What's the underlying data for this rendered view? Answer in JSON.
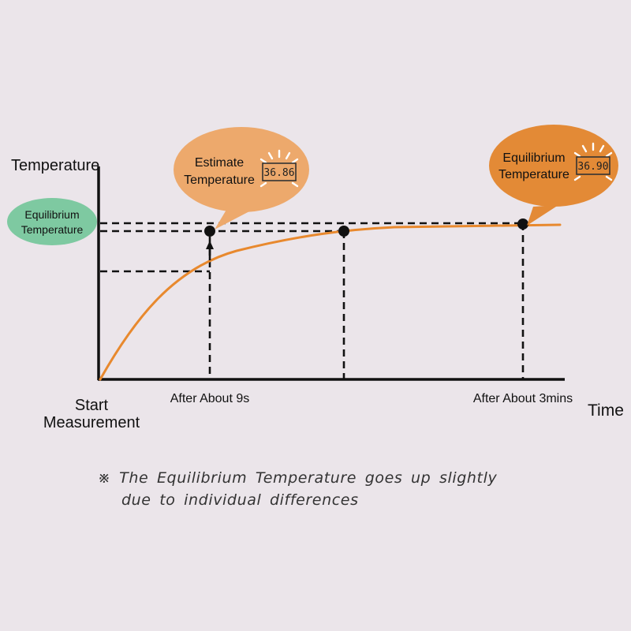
{
  "diagram": {
    "y_axis_label": "Temperature",
    "x_axis_label": "Time",
    "origin_label": [
      "Start",
      "Measurement"
    ],
    "marker_labels": {
      "nine_seconds": "After About 9s",
      "three_minutes": "After About 3mins"
    },
    "badge_equilibrium": [
      "Equilibrium",
      "Temperature"
    ],
    "bubble_estimate": {
      "text": [
        "Estimate",
        "Temperature"
      ],
      "display": "36.86"
    },
    "bubble_equilibrium": {
      "text": [
        "Equilibrium",
        "Temperature"
      ],
      "display": "36.90"
    },
    "note": {
      "symbol": "※",
      "lines": [
        "The Equilibrium Temperature goes up slightly",
        "due to individual differences"
      ]
    },
    "colors": {
      "curve": "#e8892e",
      "badge_green": "#7ec9a1",
      "bubble_light_orange": "#eda96c",
      "bubble_dark_orange": "#e38a36",
      "axis": "#111111"
    }
  }
}
